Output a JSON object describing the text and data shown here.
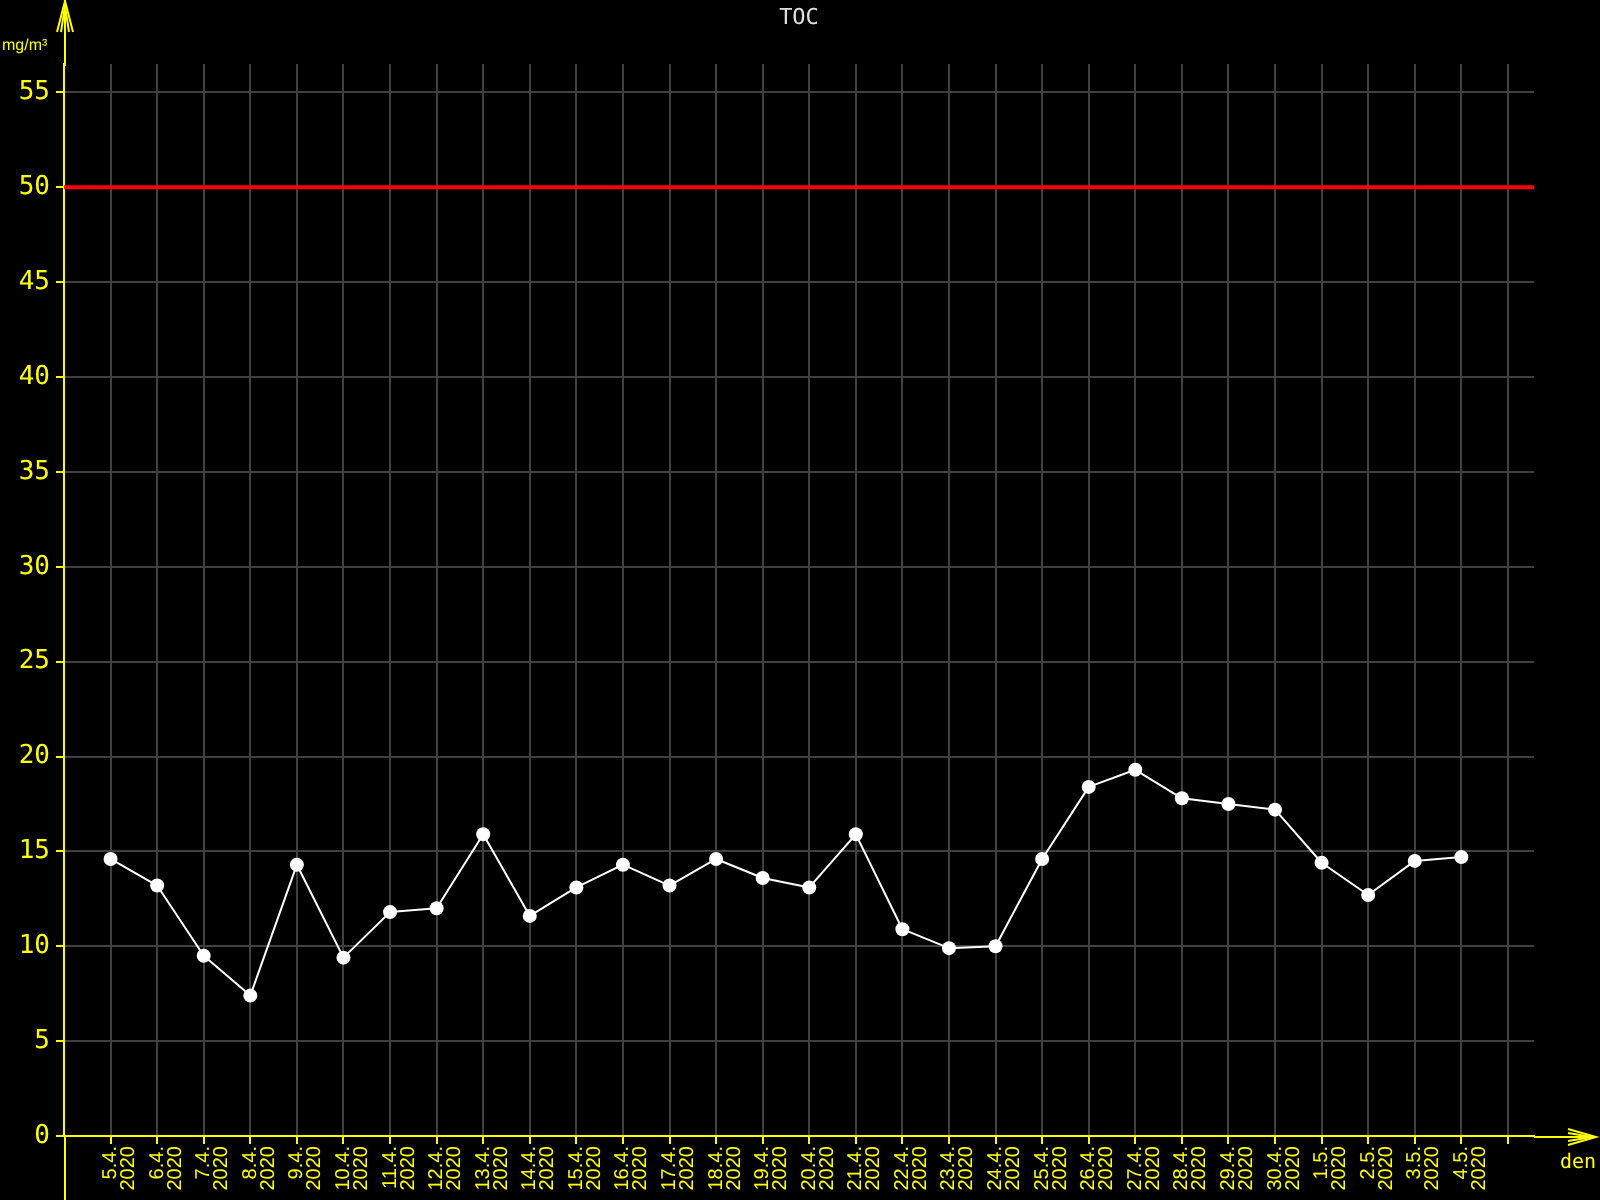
{
  "chart_data": {
    "type": "line",
    "title": "TOC",
    "xlabel": "den",
    "ylabel": "mg/m³",
    "categories": [
      "5.4. 2020",
      "6.4. 2020",
      "7.4. 2020",
      "8.4. 2020",
      "9.4. 2020",
      "10.4. 2020",
      "11.4. 2020",
      "12.4. 2020",
      "13.4. 2020",
      "14.4. 2020",
      "15.4. 2020",
      "16.4. 2020",
      "17.4. 2020",
      "18.4. 2020",
      "19.4. 2020",
      "20.4. 2020",
      "21.4. 2020",
      "22.4. 2020",
      "23.4. 2020",
      "24.4. 2020",
      "25.4. 2020",
      "26.4. 2020",
      "27.4. 2020",
      "28.4. 2020",
      "29.4. 2020",
      "30.4. 2020",
      "1.5. 2020",
      "2.5. 2020",
      "3.5. 2020",
      "4.5. 2020",
      null
    ],
    "values": [
      14.6,
      13.2,
      9.5,
      7.4,
      14.3,
      9.4,
      11.8,
      12.0,
      15.9,
      11.6,
      13.1,
      14.3,
      13.2,
      14.6,
      13.6,
      13.1,
      15.9,
      10.9,
      9.9,
      10.0,
      14.6,
      18.4,
      19.3,
      17.8,
      17.5,
      17.2,
      14.4,
      12.7,
      14.5,
      14.7,
      null
    ],
    "color": "#ffffff",
    "marker": "circle",
    "line_style": "solid",
    "ylim": [
      0,
      56.5
    ],
    "yticks": [
      0,
      5,
      10,
      15,
      20,
      25,
      30,
      35,
      40,
      45,
      50,
      55
    ],
    "grid": true,
    "ref_lines": [
      {
        "axis": "y",
        "value": 50,
        "color": "#ff0000"
      }
    ]
  }
}
